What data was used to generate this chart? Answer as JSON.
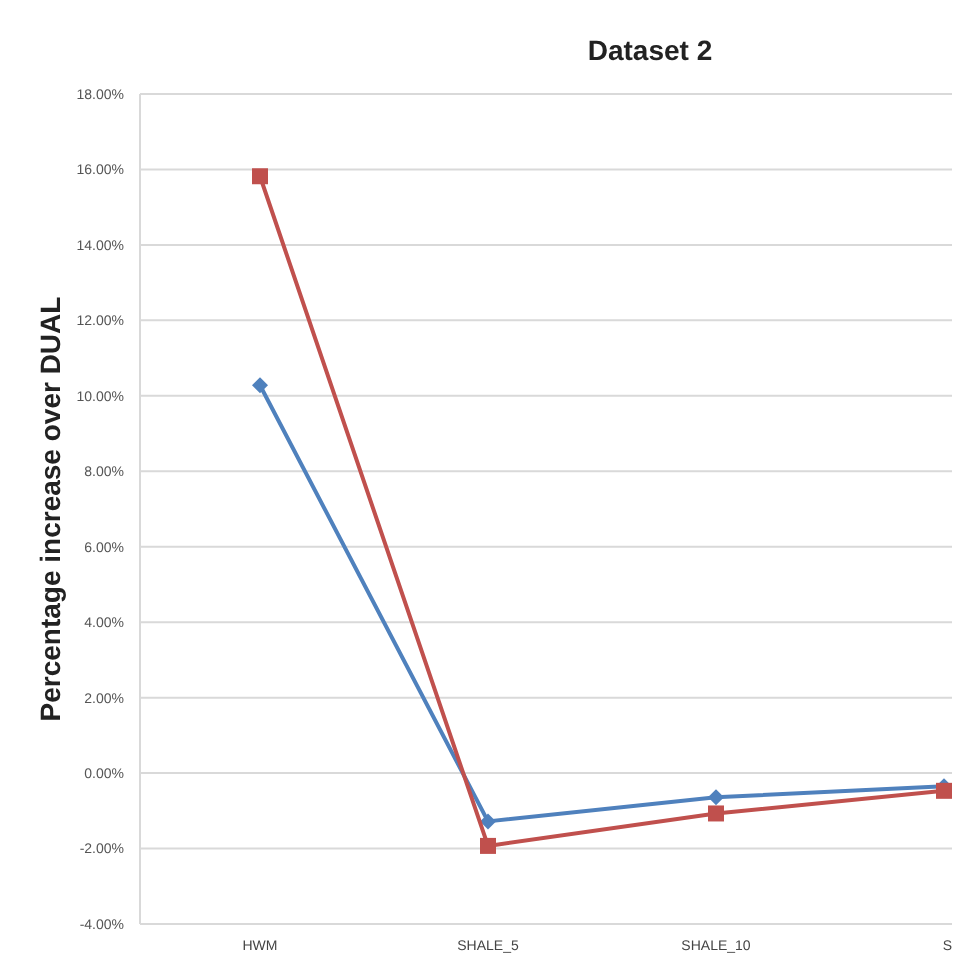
{
  "chart_data": {
    "type": "line",
    "title": "Dataset 2",
    "ylabel": "Percentage increase over DUAL",
    "categories": [
      "HWM",
      "SHALE_5",
      "SHALE_10",
      "S"
    ],
    "series": [
      {
        "color": "#4f81bd",
        "marker": "diamond",
        "values": [
          10.28,
          -1.28,
          -0.64,
          -0.35
        ]
      },
      {
        "color": "#c0504d",
        "marker": "square",
        "values": [
          15.82,
          -1.93,
          -1.07,
          -0.47
        ]
      }
    ],
    "ylim": [
      -4,
      18
    ],
    "yticks": [
      {
        "value": -4,
        "label": "-4.00%"
      },
      {
        "value": -2,
        "label": "-2.00%"
      },
      {
        "value": 0,
        "label": "0.00%"
      },
      {
        "value": 2,
        "label": "2.00%"
      },
      {
        "value": 4,
        "label": "4.00%"
      },
      {
        "value": 6,
        "label": "6.00%"
      },
      {
        "value": 8,
        "label": "8.00%"
      },
      {
        "value": 10,
        "label": "10.00%"
      },
      {
        "value": 12,
        "label": "12.00%"
      },
      {
        "value": 14,
        "label": "14.00%"
      },
      {
        "value": 16,
        "label": "16.00%"
      },
      {
        "value": 18,
        "label": "18.00%"
      }
    ],
    "grid": "y"
  }
}
